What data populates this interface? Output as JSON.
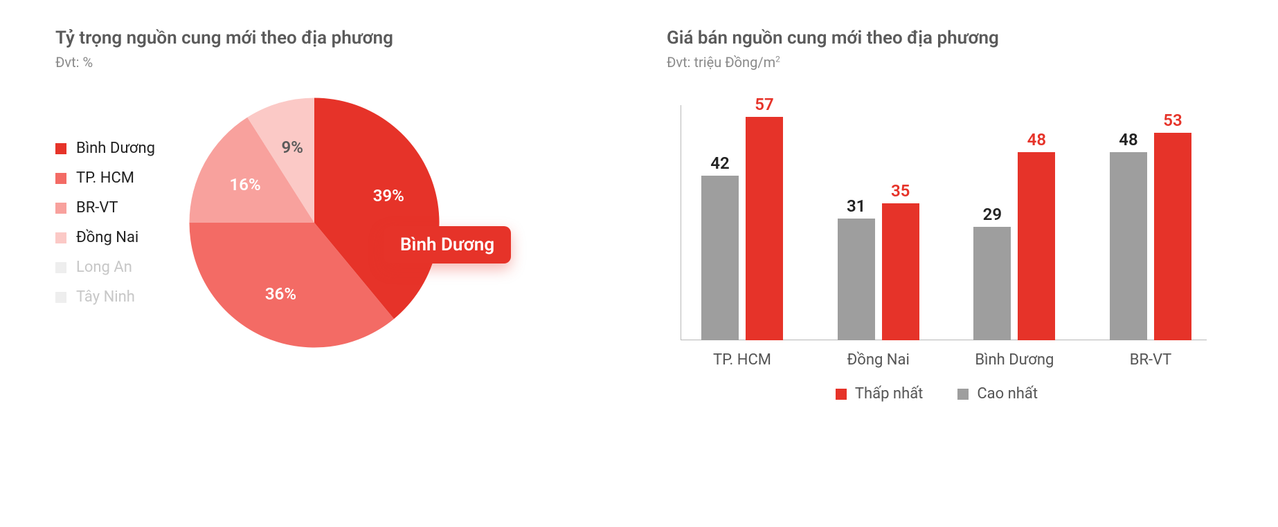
{
  "colors": {
    "red_primary": "#e63329",
    "red_mid": "#f36b65",
    "red_light": "#f8a19d",
    "red_xlight": "#fbc9c6",
    "grey_bar": "#9e9e9e",
    "grey_text": "#5a5a5a",
    "grey_muted": "#8a8a8a",
    "grey_disabled": "#c7c7c7",
    "black": "#222222"
  },
  "pie": {
    "title": "Tỷ trọng nguồn cung mới theo địa phương",
    "subtitle": "Đvt: %",
    "legend": [
      {
        "label": "Bình Dương",
        "color": "#e63329",
        "text_color": "#222222"
      },
      {
        "label": "TP. HCM",
        "color": "#f36b65",
        "text_color": "#222222"
      },
      {
        "label": "BR-VT",
        "color": "#f8a19d",
        "text_color": "#222222"
      },
      {
        "label": "Đồng Nai",
        "color": "#fbc9c6",
        "text_color": "#222222"
      },
      {
        "label": "Long An",
        "color": "#eeeeee",
        "text_color": "#c7c7c7"
      },
      {
        "label": "Tây Ninh",
        "color": "#eeeeee",
        "text_color": "#c7c7c7"
      }
    ],
    "slices": [
      {
        "label": "39%",
        "value": 39,
        "color": "#e63329",
        "label_color": "#ffffff"
      },
      {
        "label": "36%",
        "value": 36,
        "color": "#f36b65",
        "label_color": "#ffffff"
      },
      {
        "label": "16%",
        "value": 16,
        "color": "#f8a19d",
        "label_color": "#ffffff"
      },
      {
        "label": "9%",
        "value": 9,
        "color": "#fbc9c6",
        "label_color": "#5a5a5a"
      }
    ],
    "callout": {
      "text": "Bình Dương",
      "bg": "#e63329",
      "fg": "#ffffff"
    }
  },
  "bar": {
    "title": "Giá bán nguồn cung mới theo địa phương",
    "subtitle_prefix": "Đvt: triệu Đồng/m",
    "subtitle_sup": "2",
    "ymax": 60,
    "categories": [
      "TP. HCM",
      "Đồng Nai",
      "Bình Dương",
      "BR-VT"
    ],
    "series": [
      {
        "key": "thap_nhat",
        "label": "Thấp nhất",
        "color": "#e63329"
      },
      {
        "key": "cao_nhat",
        "label": "Cao nhất",
        "color": "#9e9e9e"
      }
    ],
    "values": {
      "cao_nhat": [
        42,
        31,
        29,
        48
      ],
      "thap_nhat": [
        57,
        35,
        48,
        53
      ]
    },
    "value_label_colors": {
      "cao_nhat": "#222222",
      "thap_nhat": "#e63329"
    }
  }
}
